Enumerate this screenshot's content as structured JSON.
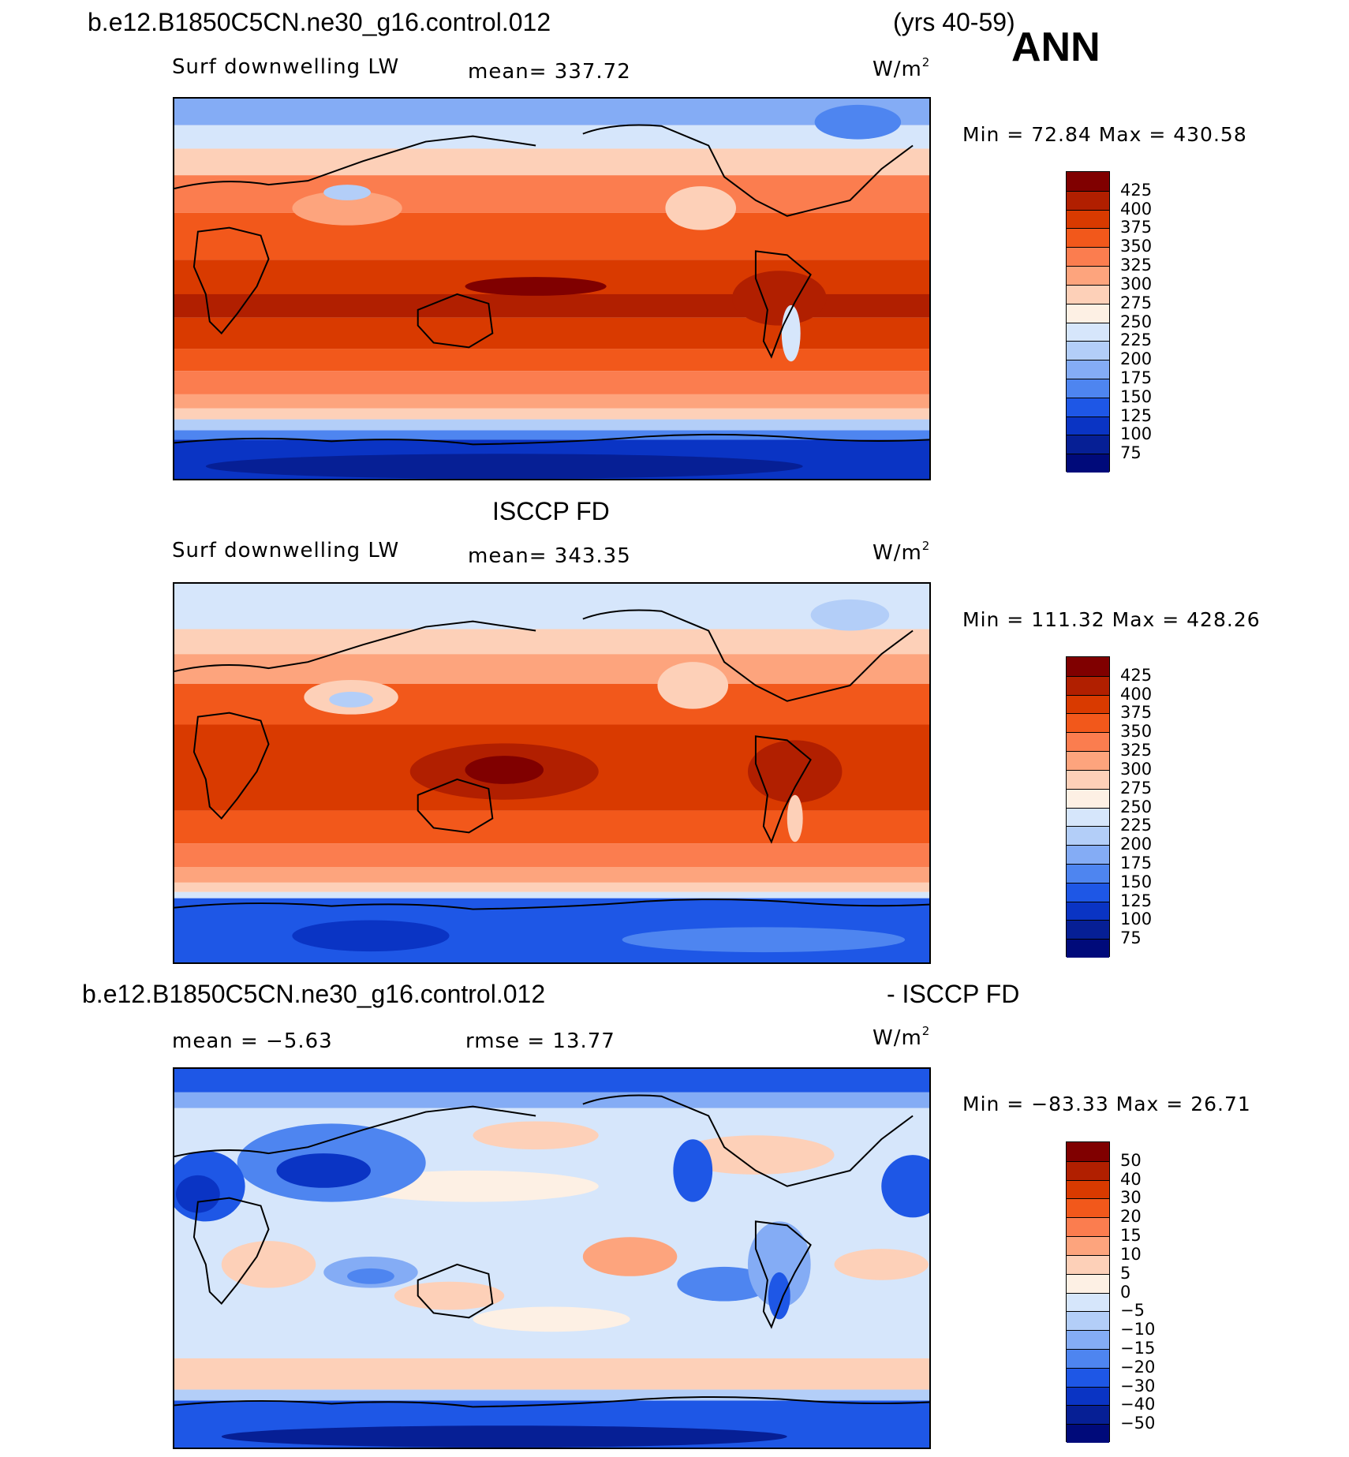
{
  "header": {
    "case_name": "b.e12.B1850C5CN.ne30_g16.control.012",
    "years": "(yrs 40-59)",
    "season": "ANN"
  },
  "panels": [
    {
      "id": "model",
      "pre_title": "",
      "variable": "Surf downwelling LW",
      "stat": "mean=  337.72",
      "units": "W/m",
      "units_sup": "2",
      "minmax": "Min =   72.84  Max  =  430.58",
      "colorbar": {
        "labels": [
          "425",
          "400",
          "375",
          "350",
          "325",
          "300",
          "275",
          "250",
          "225",
          "200",
          "175",
          "150",
          "125",
          "100",
          "75"
        ],
        "colors": [
          "#800000",
          "#b11f00",
          "#d93a00",
          "#f2581b",
          "#fb7d4f",
          "#fda47d",
          "#fdd0b8",
          "#fdf0e4",
          "#d6e6fb",
          "#b3cef8",
          "#84acf5",
          "#4e85f0",
          "#1e57e6",
          "#0a34c4",
          "#061f95",
          "#000a7a"
        ]
      }
    },
    {
      "id": "obs",
      "pre_title": "ISCCP FD",
      "variable": "Surf downwelling LW",
      "stat": "mean=  343.35",
      "units": "W/m",
      "units_sup": "2",
      "minmax": "Min  =  111.32  Max  =  428.26",
      "colorbar": {
        "labels": [
          "425",
          "400",
          "375",
          "350",
          "325",
          "300",
          "275",
          "250",
          "225",
          "200",
          "175",
          "150",
          "125",
          "100",
          "75"
        ],
        "colors": [
          "#800000",
          "#b11f00",
          "#d93a00",
          "#f2581b",
          "#fb7d4f",
          "#fda47d",
          "#fdd0b8",
          "#fdf0e4",
          "#d6e6fb",
          "#b3cef8",
          "#84acf5",
          "#4e85f0",
          "#1e57e6",
          "#0a34c4",
          "#061f95",
          "#000a7a"
        ]
      }
    },
    {
      "id": "diff",
      "pre_title": "b.e12.B1850C5CN.ne30_g16.control.012",
      "pre_title_right": "- ISCCP FD",
      "variable": "mean  =   −5.63",
      "stat": "rmse  =   13.77",
      "units": "W/m",
      "units_sup": "2",
      "minmax": "Min  =  −83.33  Max  =   26.71",
      "colorbar": {
        "labels": [
          "50",
          "40",
          "30",
          "20",
          "15",
          "10",
          "5",
          "0",
          "−5",
          "−10",
          "−15",
          "−20",
          "−30",
          "−40",
          "−50"
        ],
        "colors": [
          "#800000",
          "#b11f00",
          "#d93a00",
          "#f2581b",
          "#fb7d4f",
          "#fda47d",
          "#fdd0b8",
          "#fdf0e4",
          "#d6e6fb",
          "#b3cef8",
          "#84acf5",
          "#4e85f0",
          "#1e57e6",
          "#0a34c4",
          "#061f95",
          "#000a7a"
        ]
      }
    }
  ],
  "colors": {
    "warm_dark": "#800000",
    "warm": "#d93a00",
    "neutral": "#fdf0e4",
    "cold": "#1e57e6",
    "cold_dark": "#000a7a",
    "coastline": "#000000"
  }
}
